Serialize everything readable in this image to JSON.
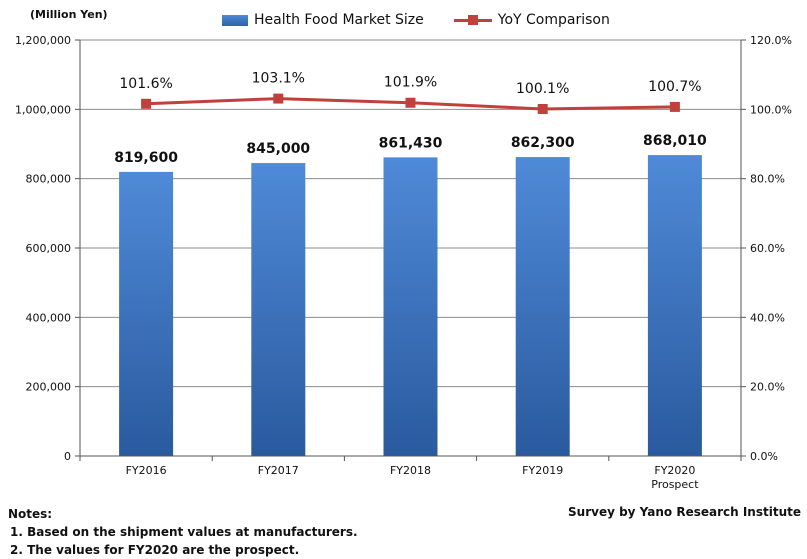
{
  "chart_data": {
    "type": "bar+line",
    "unit_label": "(Million Yen)",
    "categories": [
      {
        "line1": "FY2016",
        "line2": ""
      },
      {
        "line1": "FY2017",
        "line2": ""
      },
      {
        "line1": "FY2018",
        "line2": ""
      },
      {
        "line1": "FY2019",
        "line2": ""
      },
      {
        "line1": "FY2020",
        "line2": "Prospect"
      }
    ],
    "series": [
      {
        "name": "Health Food Market Size",
        "type": "bar",
        "axis": "left",
        "values": [
          819600,
          845000,
          861430,
          862300,
          868010
        ],
        "labels": [
          "819,600",
          "845,000",
          "861,430",
          "862,300",
          "868,010"
        ],
        "color": "#3a74c4"
      },
      {
        "name": "YoY Comparison",
        "type": "line",
        "axis": "right",
        "values": [
          101.6,
          103.1,
          101.9,
          100.1,
          100.7
        ],
        "labels": [
          "101.6%",
          "103.1%",
          "101.9%",
          "100.1%",
          "100.7%"
        ],
        "color": "#c0413c"
      }
    ],
    "y_left": {
      "min": 0,
      "max": 1200000,
      "ticks": [
        "0",
        "200,000",
        "400,000",
        "600,000",
        "800,000",
        "1,000,000",
        "1,200,000"
      ]
    },
    "y_right": {
      "min": 0,
      "max": 120,
      "ticks": [
        "0.0%",
        "20.0%",
        "40.0%",
        "60.0%",
        "80.0%",
        "100.0%",
        "120.0%"
      ]
    },
    "grid": true,
    "legend_position": "top"
  },
  "notes": {
    "title": "Notes:",
    "items": [
      "1.  Based on the shipment values at manufacturers.",
      "2. The values for FY2020 are the prospect."
    ]
  },
  "source": "Survey by Yano Research Institute"
}
